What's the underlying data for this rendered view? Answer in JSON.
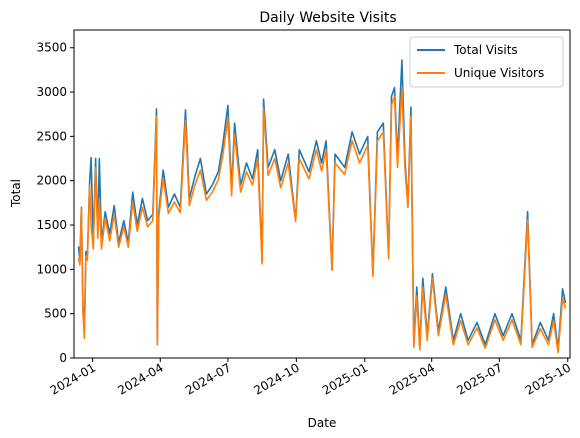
{
  "chart_data": {
    "type": "line",
    "title": "Daily Website Visits",
    "xlabel": "Date",
    "ylabel": "Total",
    "xlim": [
      "2023-12-07",
      "2025-10-04"
    ],
    "ylim": [
      0,
      3700
    ],
    "grid": false,
    "legend_position": "top-right",
    "yticks": [
      0,
      500,
      1000,
      1500,
      2000,
      2500,
      3000,
      3500
    ],
    "xticks": [
      {
        "date": "2024-01-01",
        "label": "2024-01"
      },
      {
        "date": "2024-04-01",
        "label": "2024-04"
      },
      {
        "date": "2024-07-01",
        "label": "2024-07"
      },
      {
        "date": "2024-10-01",
        "label": "2024-10"
      },
      {
        "date": "2025-01-01",
        "label": "2025-01"
      },
      {
        "date": "2025-04-01",
        "label": "2025-04"
      },
      {
        "date": "2025-07-01",
        "label": "2025-07"
      },
      {
        "date": "2025-10-01",
        "label": "2025-10"
      }
    ],
    "series": [
      {
        "name": "Total Visits",
        "color": "#1f77b4",
        "points": [
          [
            "2023-12-13",
            1260
          ],
          [
            "2023-12-15",
            1100
          ],
          [
            "2023-12-17",
            1700
          ],
          [
            "2023-12-19",
            600
          ],
          [
            "2023-12-21",
            350
          ],
          [
            "2023-12-23",
            1200
          ],
          [
            "2023-12-25",
            1150
          ],
          [
            "2023-12-28",
            1980
          ],
          [
            "2023-12-30",
            2260
          ],
          [
            "2024-01-02",
            1300
          ],
          [
            "2024-01-05",
            2250
          ],
          [
            "2024-01-08",
            1400
          ],
          [
            "2024-01-10",
            2250
          ],
          [
            "2024-01-13",
            1300
          ],
          [
            "2024-01-18",
            1650
          ],
          [
            "2024-01-24",
            1400
          ],
          [
            "2024-01-30",
            1720
          ],
          [
            "2024-02-05",
            1300
          ],
          [
            "2024-02-12",
            1550
          ],
          [
            "2024-02-18",
            1300
          ],
          [
            "2024-02-24",
            1870
          ],
          [
            "2024-03-01",
            1500
          ],
          [
            "2024-03-08",
            1800
          ],
          [
            "2024-03-15",
            1550
          ],
          [
            "2024-03-22",
            1620
          ],
          [
            "2024-03-27",
            2810
          ],
          [
            "2024-03-28",
            150
          ],
          [
            "2024-03-30",
            1650
          ],
          [
            "2024-04-05",
            2120
          ],
          [
            "2024-04-12",
            1700
          ],
          [
            "2024-04-20",
            1850
          ],
          [
            "2024-04-28",
            1700
          ],
          [
            "2024-05-05",
            2800
          ],
          [
            "2024-05-10",
            1800
          ],
          [
            "2024-05-18",
            2060
          ],
          [
            "2024-05-25",
            2250
          ],
          [
            "2024-06-02",
            1850
          ],
          [
            "2024-06-10",
            1950
          ],
          [
            "2024-06-18",
            2100
          ],
          [
            "2024-06-24",
            2400
          ],
          [
            "2024-07-01",
            2850
          ],
          [
            "2024-07-06",
            1900
          ],
          [
            "2024-07-10",
            2650
          ],
          [
            "2024-07-18",
            1950
          ],
          [
            "2024-07-26",
            2200
          ],
          [
            "2024-08-03",
            2020
          ],
          [
            "2024-08-10",
            2350
          ],
          [
            "2024-08-16",
            1100
          ],
          [
            "2024-08-18",
            2920
          ],
          [
            "2024-08-24",
            2150
          ],
          [
            "2024-09-02",
            2350
          ],
          [
            "2024-09-10",
            2000
          ],
          [
            "2024-09-20",
            2300
          ],
          [
            "2024-09-30",
            1550
          ],
          [
            "2024-10-05",
            2350
          ],
          [
            "2024-10-18",
            2100
          ],
          [
            "2024-10-28",
            2450
          ],
          [
            "2024-11-04",
            2200
          ],
          [
            "2024-11-10",
            2450
          ],
          [
            "2024-11-18",
            1000
          ],
          [
            "2024-11-22",
            2300
          ],
          [
            "2024-12-05",
            2150
          ],
          [
            "2024-12-15",
            2550
          ],
          [
            "2024-12-25",
            2300
          ],
          [
            "2025-01-05",
            2500
          ],
          [
            "2025-01-12",
            950
          ],
          [
            "2025-01-18",
            2550
          ],
          [
            "2025-01-26",
            2650
          ],
          [
            "2025-02-02",
            1150
          ],
          [
            "2025-02-06",
            2950
          ],
          [
            "2025-02-10",
            3050
          ],
          [
            "2025-02-14",
            2250
          ],
          [
            "2025-02-20",
            3360
          ],
          [
            "2025-02-24",
            2250
          ],
          [
            "2025-02-28",
            1720
          ],
          [
            "2025-03-04",
            2830
          ],
          [
            "2025-03-08",
            150
          ],
          [
            "2025-03-12",
            800
          ],
          [
            "2025-03-16",
            120
          ],
          [
            "2025-03-20",
            900
          ],
          [
            "2025-03-26",
            250
          ],
          [
            "2025-04-02",
            950
          ],
          [
            "2025-04-10",
            300
          ],
          [
            "2025-04-20",
            800
          ],
          [
            "2025-04-30",
            200
          ],
          [
            "2025-05-10",
            500
          ],
          [
            "2025-05-20",
            200
          ],
          [
            "2025-06-01",
            400
          ],
          [
            "2025-06-12",
            150
          ],
          [
            "2025-06-25",
            500
          ],
          [
            "2025-07-06",
            250
          ],
          [
            "2025-07-18",
            500
          ],
          [
            "2025-07-30",
            200
          ],
          [
            "2025-08-08",
            1650
          ],
          [
            "2025-08-14",
            150
          ],
          [
            "2025-08-25",
            400
          ],
          [
            "2025-09-05",
            200
          ],
          [
            "2025-09-12",
            500
          ],
          [
            "2025-09-18",
            100
          ],
          [
            "2025-09-24",
            780
          ],
          [
            "2025-09-28",
            620
          ]
        ]
      },
      {
        "name": "Unique Visitors",
        "color": "#ff7f0e",
        "points": [
          [
            "2023-12-13",
            1130
          ],
          [
            "2023-12-15",
            1050
          ],
          [
            "2023-12-17",
            1690
          ],
          [
            "2023-12-19",
            520
          ],
          [
            "2023-12-21",
            220
          ],
          [
            "2023-12-23",
            1150
          ],
          [
            "2023-12-25",
            1100
          ],
          [
            "2023-12-28",
            1950
          ],
          [
            "2023-12-30",
            1500
          ],
          [
            "2024-01-02",
            1230
          ],
          [
            "2024-01-05",
            2150
          ],
          [
            "2024-01-08",
            1350
          ],
          [
            "2024-01-10",
            1800
          ],
          [
            "2024-01-13",
            1230
          ],
          [
            "2024-01-18",
            1580
          ],
          [
            "2024-01-24",
            1320
          ],
          [
            "2024-01-30",
            1620
          ],
          [
            "2024-02-05",
            1250
          ],
          [
            "2024-02-12",
            1480
          ],
          [
            "2024-02-18",
            1250
          ],
          [
            "2024-02-24",
            1760
          ],
          [
            "2024-03-01",
            1430
          ],
          [
            "2024-03-08",
            1700
          ],
          [
            "2024-03-15",
            1480
          ],
          [
            "2024-03-22",
            1550
          ],
          [
            "2024-03-27",
            2730
          ],
          [
            "2024-03-28",
            150
          ],
          [
            "2024-03-30",
            1590
          ],
          [
            "2024-04-05",
            2030
          ],
          [
            "2024-04-12",
            1630
          ],
          [
            "2024-04-20",
            1760
          ],
          [
            "2024-04-28",
            1640
          ],
          [
            "2024-05-05",
            2680
          ],
          [
            "2024-05-10",
            1720
          ],
          [
            "2024-05-18",
            1960
          ],
          [
            "2024-05-25",
            2120
          ],
          [
            "2024-06-02",
            1780
          ],
          [
            "2024-06-10",
            1870
          ],
          [
            "2024-06-18",
            2010
          ],
          [
            "2024-06-24",
            2280
          ],
          [
            "2024-07-01",
            2700
          ],
          [
            "2024-07-06",
            1830
          ],
          [
            "2024-07-10",
            2530
          ],
          [
            "2024-07-18",
            1870
          ],
          [
            "2024-07-26",
            2100
          ],
          [
            "2024-08-03",
            1950
          ],
          [
            "2024-08-10",
            2250
          ],
          [
            "2024-08-16",
            1060
          ],
          [
            "2024-08-18",
            2820
          ],
          [
            "2024-08-24",
            2060
          ],
          [
            "2024-09-02",
            2250
          ],
          [
            "2024-09-10",
            1920
          ],
          [
            "2024-09-20",
            2200
          ],
          [
            "2024-09-30",
            1540
          ],
          [
            "2024-10-05",
            2250
          ],
          [
            "2024-10-18",
            2020
          ],
          [
            "2024-10-28",
            2350
          ],
          [
            "2024-11-04",
            2110
          ],
          [
            "2024-11-10",
            2350
          ],
          [
            "2024-11-18",
            990
          ],
          [
            "2024-11-22",
            2200
          ],
          [
            "2024-12-05",
            2070
          ],
          [
            "2024-12-15",
            2450
          ],
          [
            "2024-12-25",
            2200
          ],
          [
            "2025-01-05",
            2400
          ],
          [
            "2025-01-12",
            920
          ],
          [
            "2025-01-18",
            2450
          ],
          [
            "2025-01-26",
            2550
          ],
          [
            "2025-02-02",
            1120
          ],
          [
            "2025-02-06",
            2850
          ],
          [
            "2025-02-10",
            2950
          ],
          [
            "2025-02-14",
            2150
          ],
          [
            "2025-02-20",
            3050
          ],
          [
            "2025-02-24",
            2150
          ],
          [
            "2025-02-28",
            1700
          ],
          [
            "2025-03-04",
            2730
          ],
          [
            "2025-03-08",
            120
          ],
          [
            "2025-03-12",
            700
          ],
          [
            "2025-03-16",
            90
          ],
          [
            "2025-03-20",
            800
          ],
          [
            "2025-03-26",
            200
          ],
          [
            "2025-04-02",
            900
          ],
          [
            "2025-04-10",
            250
          ],
          [
            "2025-04-20",
            720
          ],
          [
            "2025-04-30",
            150
          ],
          [
            "2025-05-10",
            420
          ],
          [
            "2025-05-20",
            150
          ],
          [
            "2025-06-01",
            340
          ],
          [
            "2025-06-12",
            110
          ],
          [
            "2025-06-25",
            430
          ],
          [
            "2025-07-06",
            200
          ],
          [
            "2025-07-18",
            430
          ],
          [
            "2025-07-30",
            150
          ],
          [
            "2025-08-08",
            1560
          ],
          [
            "2025-08-14",
            120
          ],
          [
            "2025-08-25",
            330
          ],
          [
            "2025-09-05",
            150
          ],
          [
            "2025-09-12",
            420
          ],
          [
            "2025-09-18",
            60
          ],
          [
            "2025-09-24",
            680
          ],
          [
            "2025-09-28",
            560
          ]
        ]
      }
    ]
  }
}
